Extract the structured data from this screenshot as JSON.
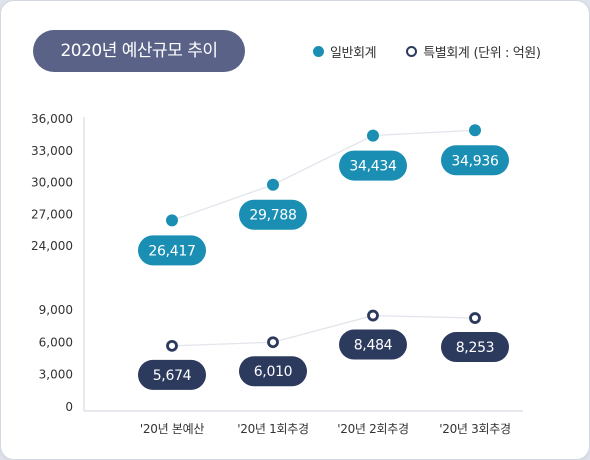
{
  "title": "2020년 예산규모 추이",
  "legend": {
    "items": [
      "일반회계",
      "특별회계"
    ],
    "unit": "(단위 : 억원)"
  },
  "colors": {
    "general": "#1a8fb3",
    "special": "#2c3a5e",
    "title_bg": "#5a6287"
  },
  "chart_data": {
    "type": "line",
    "categories": [
      "'20년 본예산",
      "'20년 1회추경",
      "'20년 2회추경",
      "'20년 3회추경"
    ],
    "series": [
      {
        "name": "일반회계",
        "values": [
          26417,
          29788,
          34434,
          34936
        ]
      },
      {
        "name": "특별회계",
        "values": [
          5674,
          6010,
          8484,
          8253
        ]
      }
    ],
    "data_labels": {
      "general": [
        "26,417",
        "29,788",
        "34,434",
        "34,936"
      ],
      "special": [
        "5,674",
        "6,010",
        "8,484",
        "8,253"
      ]
    },
    "y_ticks_upper": [
      "24,000",
      "27,000",
      "30,000",
      "33,000",
      "36,000"
    ],
    "y_ticks_lower": [
      "0",
      "3,000",
      "6,000",
      "9,000"
    ],
    "ylim_upper": [
      24000,
      36000
    ],
    "ylim_lower": [
      0,
      9000
    ],
    "axis_break": true,
    "grid": false,
    "legend_position": "top-right"
  }
}
